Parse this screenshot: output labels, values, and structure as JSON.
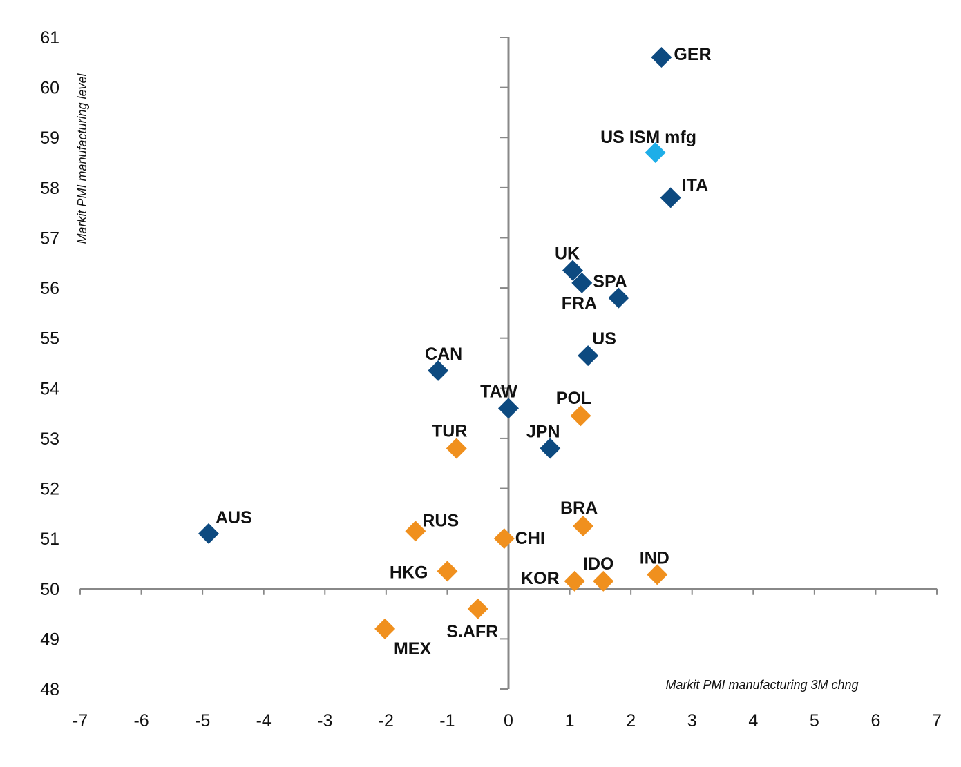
{
  "chart_data": {
    "type": "scatter",
    "title": "",
    "xlabel": "Markit PMI manufacturing 3M chng",
    "ylabel": "Markit PMI manufacturing level",
    "xlim": [
      -7,
      7
    ],
    "ylim": [
      48,
      61
    ],
    "x_ticks": [
      "-7",
      "-6",
      "-5",
      "-4",
      "-3",
      "-2",
      "-1",
      "0",
      "1",
      "2",
      "3",
      "4",
      "5",
      "6",
      "7"
    ],
    "y_ticks": [
      "48",
      "49",
      "50",
      "51",
      "52",
      "53",
      "54",
      "55",
      "56",
      "57",
      "58",
      "59",
      "60",
      "61"
    ],
    "axes_cross": {
      "x": 0,
      "y": 50
    },
    "grid": false,
    "legend": "none",
    "colors": {
      "developed": "#0d4a80",
      "emerging": "#f0901e",
      "us_ism": "#1eaee8",
      "axis": "#888888"
    },
    "points": [
      {
        "label": "GER",
        "x": 2.5,
        "y": 60.6,
        "group": "developed"
      },
      {
        "label": "US ISM mfg",
        "x": 2.4,
        "y": 58.7,
        "group": "us_ism"
      },
      {
        "label": "ITA",
        "x": 2.65,
        "y": 57.8,
        "group": "developed"
      },
      {
        "label": "UK",
        "x": 1.05,
        "y": 56.35,
        "group": "developed"
      },
      {
        "label": "SPA",
        "x": 1.2,
        "y": 56.1,
        "group": "developed"
      },
      {
        "label": "FRA",
        "x": 1.8,
        "y": 55.8,
        "group": "developed"
      },
      {
        "label": "US",
        "x": 1.3,
        "y": 54.65,
        "group": "developed"
      },
      {
        "label": "CAN",
        "x": -1.15,
        "y": 54.35,
        "group": "developed"
      },
      {
        "label": "TAW",
        "x": 0.0,
        "y": 53.6,
        "group": "developed"
      },
      {
        "label": "POL",
        "x": 1.18,
        "y": 53.45,
        "group": "emerging"
      },
      {
        "label": "TUR",
        "x": -0.85,
        "y": 52.8,
        "group": "emerging"
      },
      {
        "label": "JPN",
        "x": 0.68,
        "y": 52.8,
        "group": "developed"
      },
      {
        "label": "AUS",
        "x": -4.9,
        "y": 51.1,
        "group": "developed"
      },
      {
        "label": "RUS",
        "x": -1.52,
        "y": 51.15,
        "group": "emerging"
      },
      {
        "label": "BRA",
        "x": 1.22,
        "y": 51.25,
        "group": "emerging"
      },
      {
        "label": "CHI",
        "x": -0.07,
        "y": 51.0,
        "group": "emerging"
      },
      {
        "label": "HKG",
        "x": -1.0,
        "y": 50.35,
        "group": "emerging"
      },
      {
        "label": "KOR",
        "x": 1.08,
        "y": 50.15,
        "group": "emerging"
      },
      {
        "label": "IDO",
        "x": 1.55,
        "y": 50.15,
        "group": "emerging"
      },
      {
        "label": "IND",
        "x": 2.43,
        "y": 50.28,
        "group": "emerging"
      },
      {
        "label": "S.AFR",
        "x": -0.5,
        "y": 49.6,
        "group": "emerging"
      },
      {
        "label": "MEX",
        "x": -2.02,
        "y": 49.2,
        "group": "emerging"
      }
    ]
  }
}
